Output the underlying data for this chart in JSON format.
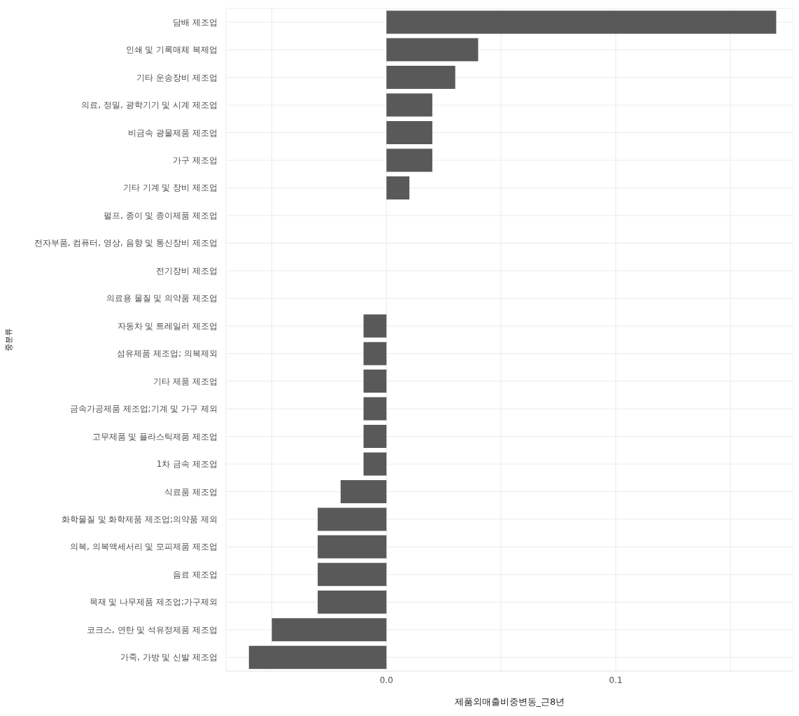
{
  "chart_data": {
    "type": "bar",
    "orientation": "horizontal",
    "xlabel": "제품외매출비중변동_근8년",
    "ylabel": "중분류",
    "categories": [
      "담배 제조업",
      "인쇄 및 기록매체 복제업",
      "기타 운송장비 제조업",
      "의료, 정밀, 광학기기 및 시계 제조업",
      "비금속 광물제품 제조업",
      "가구 제조업",
      "기타 기계 및 장비 제조업",
      "펄프, 종이 및 종이제품 제조업",
      "전자부품, 컴퓨터, 영상, 음향 및 통신장비 제조업",
      "전기장비 제조업",
      "의료용 물질 및 의약품 제조업",
      "자동차 및 트레일러 제조업",
      "섬유제품 제조업; 의복제외",
      "기타 제품 제조업",
      "금속가공제품 제조업;기계 및 가구 제외",
      "고무제품 및 플라스틱제품 제조업",
      "1차 금속 제조업",
      "식료품 제조업",
      "화학물질 및 화학제품 제조업;의약품 제외",
      "의복, 의복액세서리 및 모피제품 제조업",
      "음료 제조업",
      "목재 및 나무제품 제조업;가구제외",
      "코크스, 연탄 및 석유정제품 제조업",
      "가죽, 가방 및 신발 제조업"
    ],
    "values": [
      0.17,
      0.04,
      0.03,
      0.02,
      0.02,
      0.02,
      0.01,
      0,
      0,
      0,
      0,
      -0.01,
      -0.01,
      -0.01,
      -0.01,
      -0.01,
      -0.01,
      -0.02,
      -0.03,
      -0.03,
      -0.03,
      -0.03,
      -0.05,
      -0.06
    ],
    "color": "#595959",
    "xlim": [
      -0.07,
      0.1775
    ],
    "xticks": [
      {
        "value": -0.05,
        "label": null
      },
      {
        "value": 0,
        "label": "0.0"
      },
      {
        "value": 0.05,
        "label": null
      },
      {
        "value": 0.1,
        "label": "0.1"
      },
      {
        "value": 0.15,
        "label": null
      }
    ],
    "grid": true
  }
}
